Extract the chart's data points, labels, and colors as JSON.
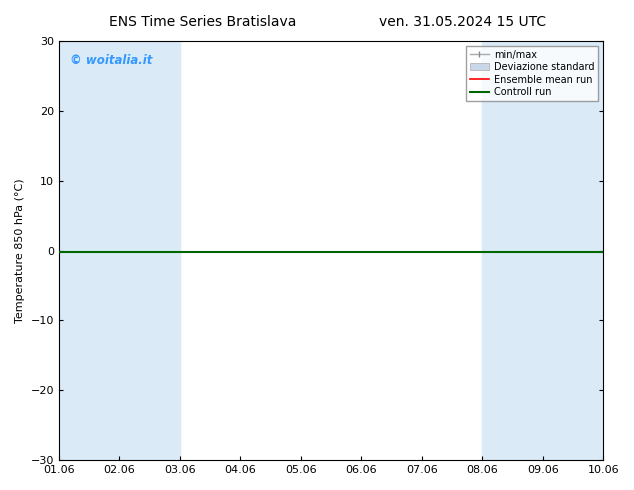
{
  "title_left": "ENS Time Series Bratislava",
  "title_right": "ven. 31.05.2024 15 UTC",
  "ylabel": "Temperature 850 hPa (°C)",
  "xlabel": "",
  "xlim": [
    0,
    9
  ],
  "ylim": [
    -30,
    30
  ],
  "yticks": [
    -30,
    -20,
    -10,
    0,
    10,
    20,
    30
  ],
  "xtick_labels": [
    "01.06",
    "02.06",
    "03.06",
    "04.06",
    "05.06",
    "06.06",
    "07.06",
    "08.06",
    "09.06",
    "10.06"
  ],
  "bg_color": "#ffffff",
  "plot_bg_color": "#ffffff",
  "watermark": "© woitalia.it",
  "watermark_color": "#3399ff",
  "shaded_color": "#daeaf7",
  "ensemble_mean_color": "#ff0000",
  "control_run_color": "#006600",
  "font_size": 8,
  "title_font_size": 10
}
